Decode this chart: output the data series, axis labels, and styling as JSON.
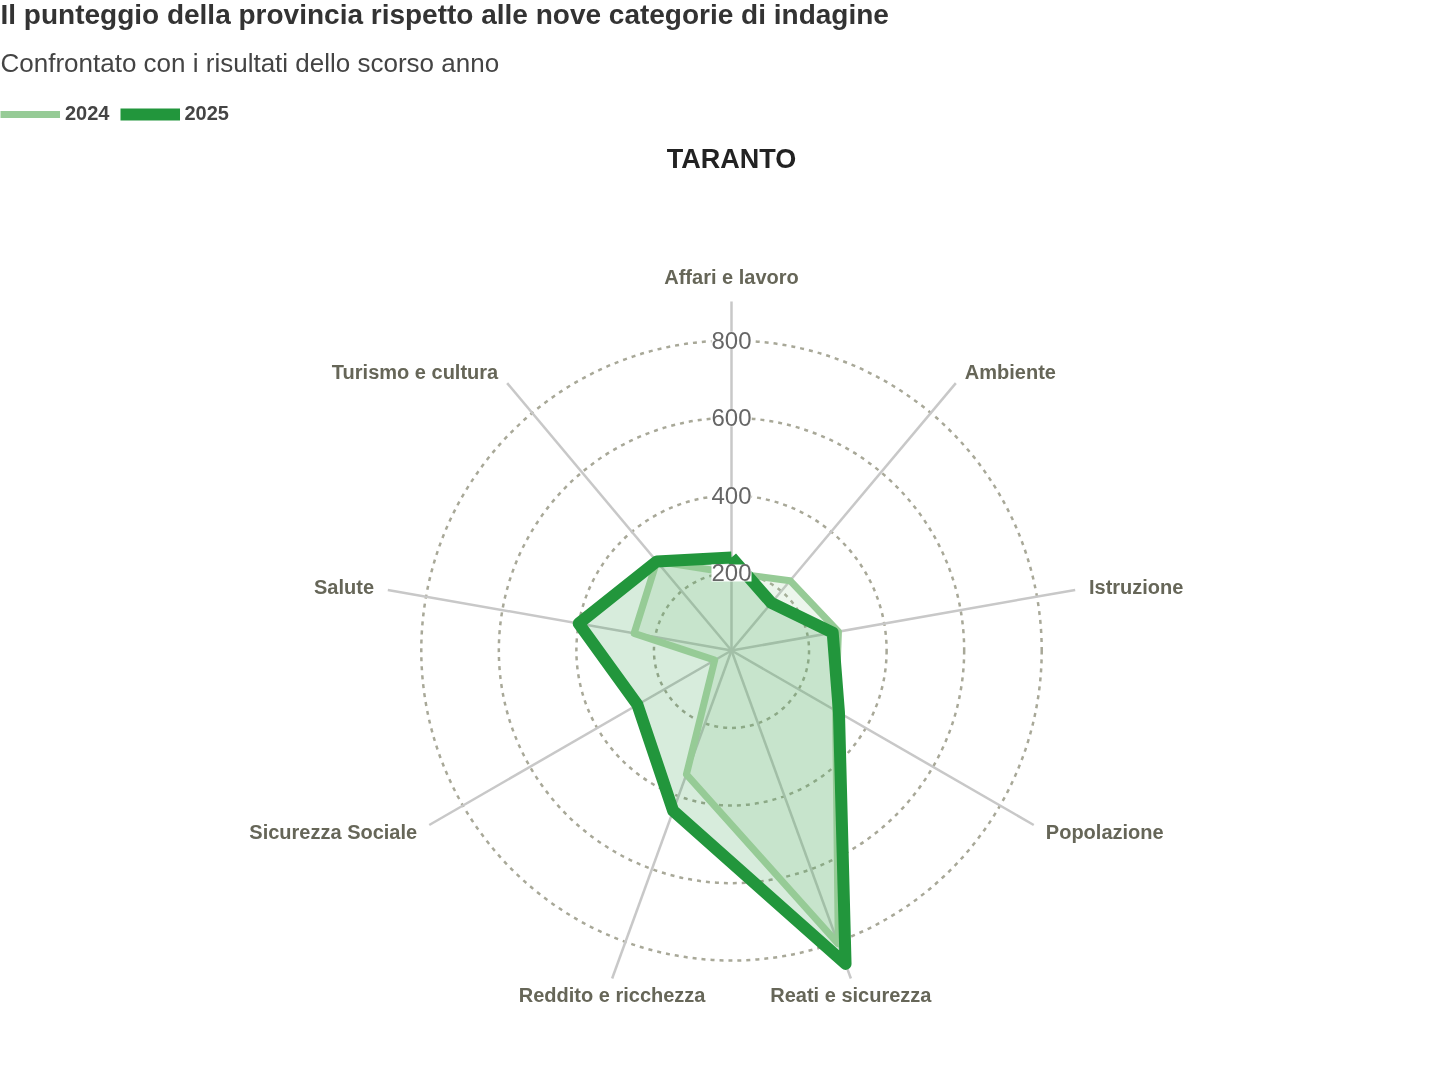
{
  "chart_data": {
    "type": "radar",
    "title": "Il punteggio della provincia rispetto alle nove categorie di indagine",
    "subtitle": "Confrontato con i risultati dello scorso anno",
    "annotations": [
      "TARANTO"
    ],
    "categories": [
      "Affari e lavoro",
      "Ambiente",
      "Istruzione",
      "Popolazione",
      "Reati e sicurezza",
      "Reddito e ricchezza",
      "Sicurezza Sociale",
      "Salute",
      "Turismo e cultura"
    ],
    "series": [
      {
        "name": "2024",
        "color": "#96cb96",
        "values": [
          200,
          235,
          280,
          310,
          805,
          340,
          50,
          255,
          300
        ]
      },
      {
        "name": "2025",
        "color": "#22963c",
        "values": [
          240,
          160,
          265,
          320,
          860,
          440,
          280,
          400,
          300
        ]
      }
    ],
    "ylim": [
      0,
      900
    ],
    "yticks": [
      200,
      400,
      600,
      800
    ],
    "grid": true,
    "legend": "top left"
  }
}
